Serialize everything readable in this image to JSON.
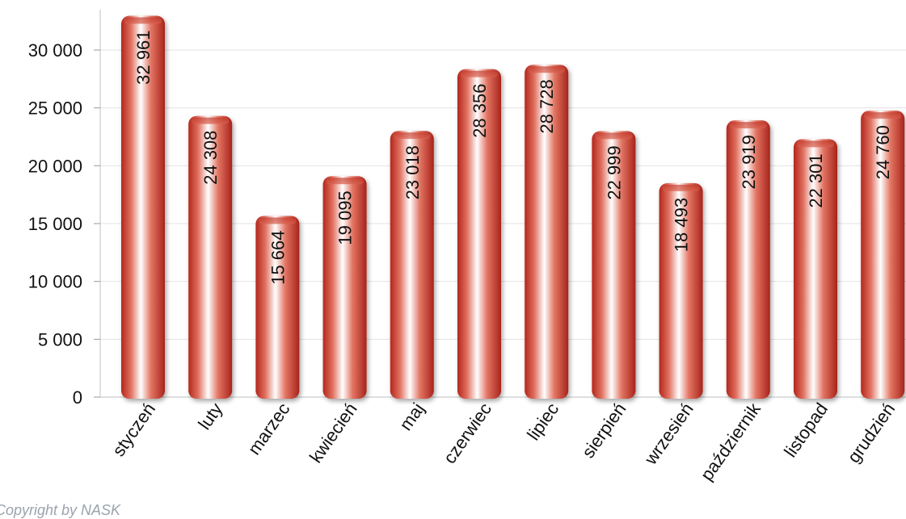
{
  "chart_data": {
    "type": "bar",
    "categories": [
      "styczeń",
      "luty",
      "marzec",
      "kwiecień",
      "maj",
      "czerwiec",
      "lipiec",
      "sierpień",
      "wrzesień",
      "październik",
      "listopad",
      "grudzień"
    ],
    "values": [
      32961,
      24308,
      15664,
      19095,
      23018,
      28356,
      28728,
      22999,
      18493,
      23919,
      22301,
      24760
    ],
    "value_labels": [
      "32 961",
      "24 308",
      "15 664",
      "19 095",
      "23 018",
      "28 356",
      "28 728",
      "22 999",
      "18 493",
      "23 919",
      "22 301",
      "24 760"
    ],
    "y_ticks": [
      0,
      5000,
      10000,
      15000,
      20000,
      25000,
      30000
    ],
    "y_tick_labels": [
      "0",
      "5 000",
      "10 000",
      "15 000",
      "20 000",
      "25 000",
      "30 000"
    ],
    "ylim": [
      0,
      33500
    ],
    "title": "",
    "xlabel": "",
    "ylabel": "",
    "grid": true,
    "bar_color": "#c0382b"
  },
  "footer": {
    "copyright": "Copyright by NASK"
  }
}
